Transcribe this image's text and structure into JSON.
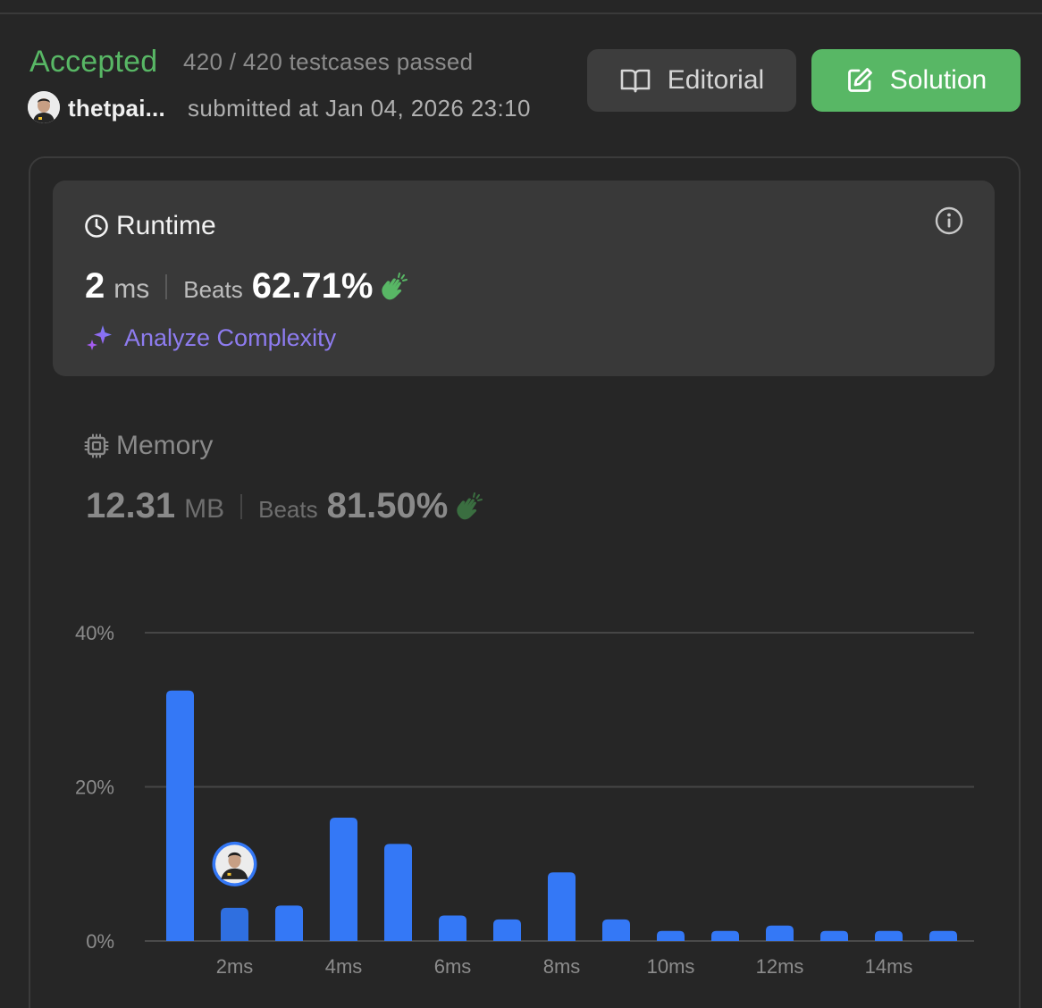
{
  "submission": {
    "status": "Accepted",
    "testcases": "420 / 420 testcases passed",
    "username": "thetpai...",
    "submitted_at": "submitted at Jan 04, 2026 23:10"
  },
  "buttons": {
    "editorial": "Editorial",
    "solution": "Solution"
  },
  "runtime": {
    "title": "Runtime",
    "value": "2",
    "unit": "ms",
    "beats_label": "Beats",
    "beats_value": "62.71%",
    "analyze_label": "Analyze Complexity"
  },
  "memory": {
    "title": "Memory",
    "value": "12.31",
    "unit": "MB",
    "beats_label": "Beats",
    "beats_value": "81.50%"
  },
  "colors": {
    "accepted": "#58b765",
    "bar": "#3478f6",
    "bar_user": "#2f6fe0",
    "analyze": "#8e7cf0",
    "clap": "#58b765"
  },
  "icons": {
    "editorial": "book-open-icon",
    "solution": "edit-icon",
    "runtime": "clock-icon",
    "memory": "chip-icon",
    "info": "info-icon",
    "analyze": "sparkle-icon",
    "beats": "clap-icon"
  },
  "chart_data": {
    "type": "bar",
    "x": [
      1,
      2,
      3,
      4,
      5,
      6,
      7,
      8,
      9,
      10,
      11,
      12,
      13,
      14,
      15
    ],
    "values": [
      32.5,
      4.3,
      4.6,
      16,
      12.6,
      3.3,
      2.8,
      8.9,
      2.8,
      1.3,
      1.3,
      2.0,
      1.3,
      1.3,
      1.3
    ],
    "x_tick_labels": [
      "2ms",
      "4ms",
      "6ms",
      "8ms",
      "10ms",
      "12ms",
      "14ms"
    ],
    "x_tick_values": [
      2,
      4,
      6,
      8,
      10,
      12,
      14
    ],
    "y_tick_labels": [
      "0%",
      "20%",
      "40%"
    ],
    "y_tick_values": [
      0,
      20,
      40
    ],
    "ylim": [
      0,
      40
    ],
    "highlight_x": 2,
    "grid": true
  }
}
